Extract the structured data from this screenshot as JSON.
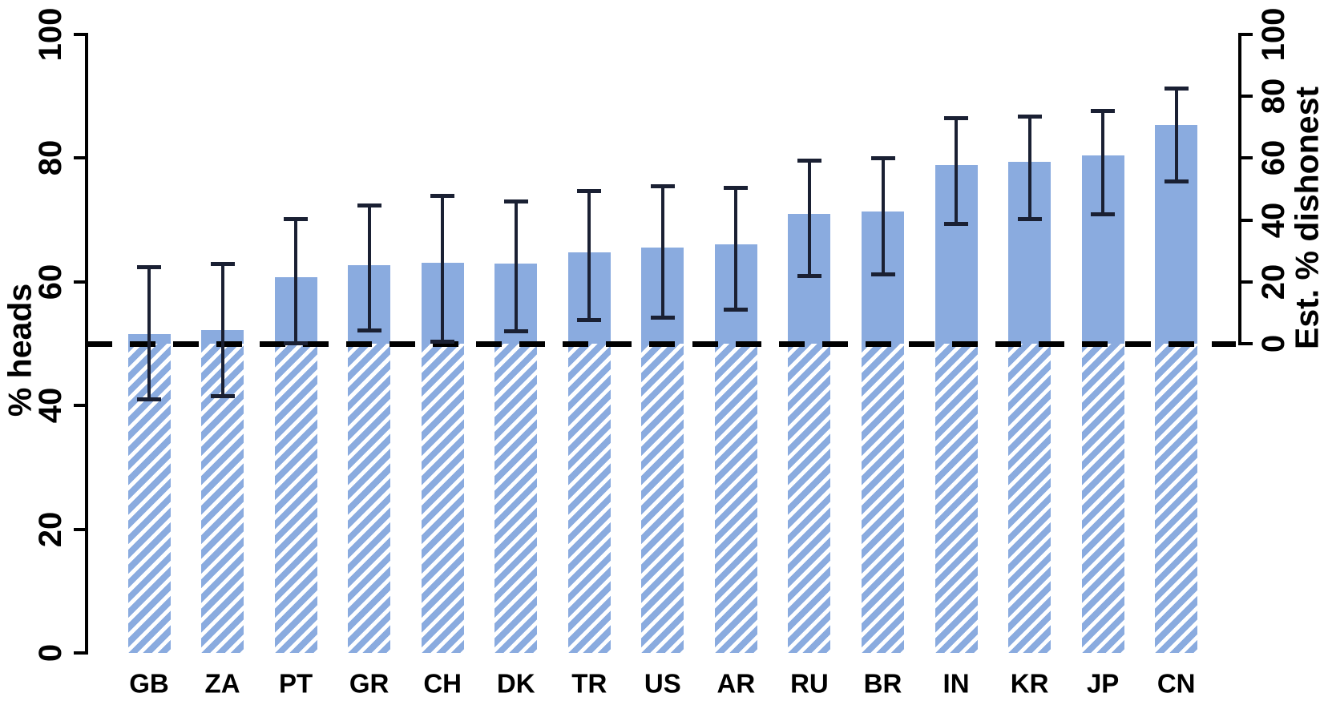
{
  "chart_data": {
    "type": "bar",
    "title": "",
    "categories": [
      "GB",
      "ZA",
      "PT",
      "GR",
      "CH",
      "DK",
      "TR",
      "US",
      "AR",
      "RU",
      "BR",
      "IN",
      "KR",
      "JP",
      "CN"
    ],
    "series": [
      {
        "name": "% heads",
        "values": [
          51.6,
          52.2,
          60.7,
          62.7,
          63.1,
          63.0,
          64.8,
          65.5,
          66.0,
          71.0,
          71.4,
          78.9,
          79.4,
          80.5,
          85.3
        ],
        "ci_low": [
          41.0,
          41.5,
          50.1,
          52.2,
          50.3,
          52.0,
          53.8,
          54.2,
          55.5,
          61.0,
          61.2,
          69.4,
          70.1,
          70.9,
          76.2
        ],
        "ci_high": [
          62.4,
          62.9,
          70.2,
          72.3,
          73.9,
          73.0,
          74.7,
          75.5,
          75.2,
          79.6,
          80.0,
          86.4,
          86.7,
          87.6,
          91.2
        ]
      }
    ],
    "left_axis": {
      "label": "% heads",
      "ticks": [
        0,
        20,
        40,
        60,
        80,
        100
      ],
      "range": [
        0,
        100
      ]
    },
    "right_axis": {
      "label": "Est. % dishonest",
      "ticks": [
        0,
        20,
        40,
        60,
        80,
        100
      ],
      "range": [
        0,
        100
      ],
      "zero_aligned_at_left_value": 50
    },
    "reference_line": {
      "left_value": 50,
      "style": "dashed",
      "color": "#000000"
    },
    "colors": {
      "bar_fill": "#8aabdf",
      "hatch_stripe": "#ffffff",
      "error_bar": "#1a2033",
      "axis": "#000000",
      "background": "#ffffff"
    },
    "bar_hatching": "diagonal white stripes on bar segment below the 50% reference line",
    "grid": false,
    "legend": false
  }
}
